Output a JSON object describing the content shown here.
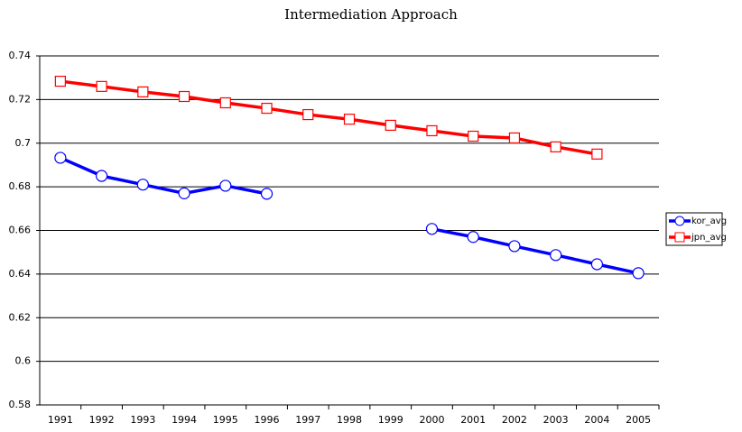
{
  "chart_data": {
    "type": "line",
    "title": "Intermediation Approach",
    "categories": [
      "1991",
      "1992",
      "1993",
      "1994",
      "1995",
      "1996",
      "1997",
      "1998",
      "1999",
      "2000",
      "2001",
      "2002",
      "2003",
      "2004",
      "2005"
    ],
    "series": [
      {
        "name": "kor_avg",
        "color": "#0000ff",
        "marker": "circle",
        "values": [
          0.6933,
          0.685,
          0.681,
          0.677,
          0.6805,
          0.6768,
          null,
          null,
          null,
          0.6607,
          0.657,
          0.6528,
          0.6487,
          0.6445,
          0.6404
        ]
      },
      {
        "name": "jpn_avg",
        "color": "#ff0000",
        "marker": "square",
        "values": [
          0.7284,
          0.726,
          0.7235,
          0.7214,
          0.7185,
          0.716,
          0.7131,
          0.711,
          0.7082,
          0.7057,
          0.7032,
          0.7024,
          0.6983,
          0.695,
          null
        ]
      }
    ],
    "ylim": [
      0.58,
      0.74
    ],
    "yticks": [
      0.58,
      0.6,
      0.62,
      0.64,
      0.66,
      0.68,
      0.7,
      0.72,
      0.74
    ],
    "grid": true,
    "legend": "right"
  }
}
